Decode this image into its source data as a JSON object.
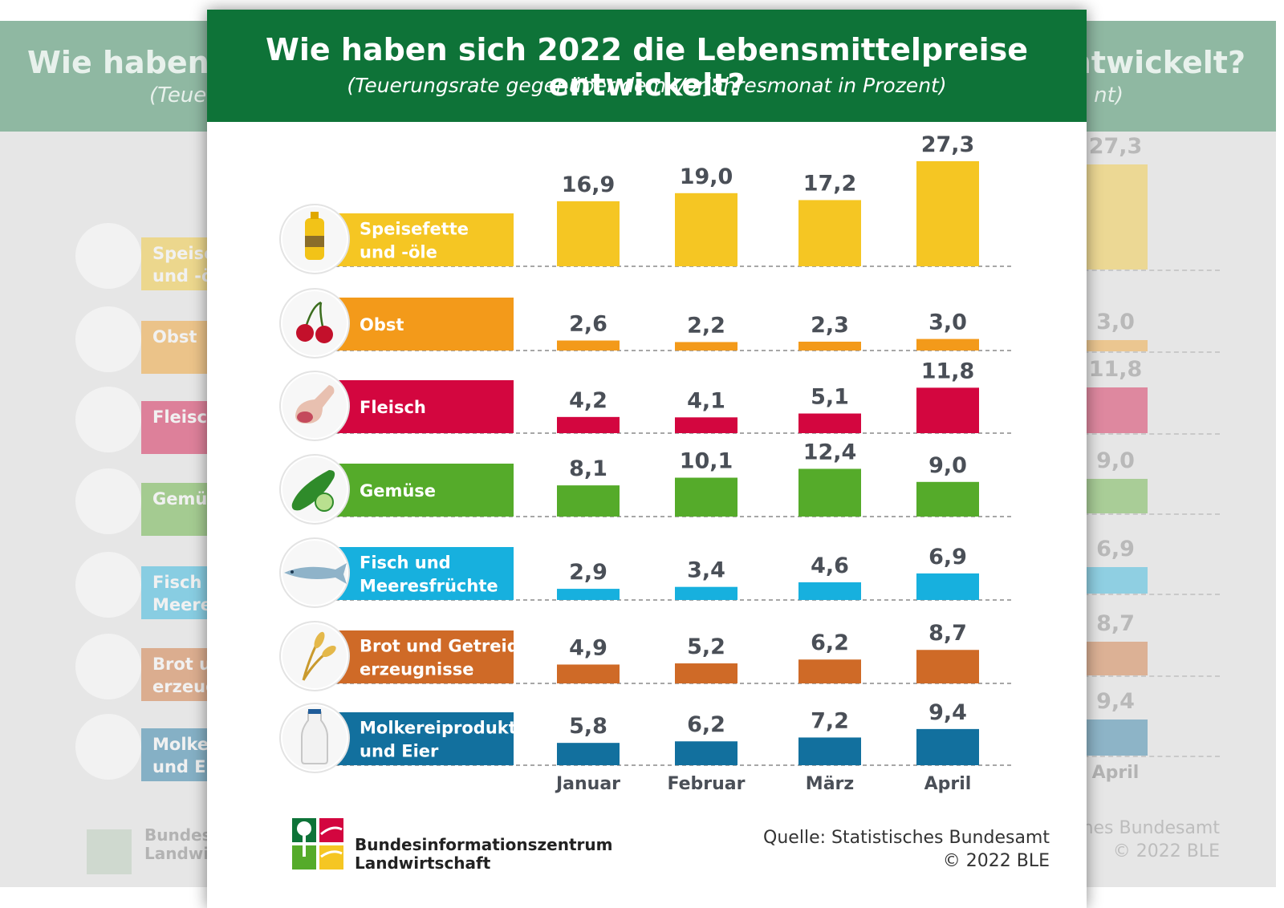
{
  "chart_data": {
    "type": "bar",
    "title": "Wie haben sich 2022 die Lebensmittelpreise entwickelt?",
    "subtitle": "(Teuerungsrate gegenüber dem Vorjahresmonat in Prozent)",
    "categories": [
      "Januar",
      "Februar",
      "März",
      "April"
    ],
    "series": [
      {
        "name": "Speisefette und -öle",
        "label_lines": [
          "Speisefette",
          "und -öle"
        ],
        "color": "#f5c623",
        "icon": "oil-bottle-icon",
        "values": [
          16.9,
          19.0,
          17.2,
          27.3
        ],
        "labels": [
          "16,9",
          "19,0",
          "17,2",
          "27,3"
        ]
      },
      {
        "name": "Obst",
        "label_lines": [
          "Obst"
        ],
        "color": "#f39a1a",
        "icon": "cherry-icon",
        "values": [
          2.6,
          2.2,
          2.3,
          3.0
        ],
        "labels": [
          "2,6",
          "2,2",
          "2,3",
          "3,0"
        ]
      },
      {
        "name": "Fleisch",
        "label_lines": [
          "Fleisch"
        ],
        "color": "#d3063f",
        "icon": "meat-icon",
        "values": [
          4.2,
          4.1,
          5.1,
          11.8
        ],
        "labels": [
          "4,2",
          "4,1",
          "5,1",
          "11,8"
        ]
      },
      {
        "name": "Gemüse",
        "label_lines": [
          "Gemüse"
        ],
        "color": "#55ab2a",
        "icon": "cucumber-icon",
        "values": [
          8.1,
          10.1,
          12.4,
          9.0
        ],
        "labels": [
          "8,1",
          "10,1",
          "12,4",
          "9,0"
        ]
      },
      {
        "name": "Fisch und Meeresfrüchte",
        "label_lines": [
          "Fisch und",
          "Meeresfrüchte"
        ],
        "color": "#17b0de",
        "icon": "fish-icon",
        "values": [
          2.9,
          3.4,
          4.6,
          6.9
        ],
        "labels": [
          "2,9",
          "3,4",
          "4,6",
          "6,9"
        ]
      },
      {
        "name": "Brot und Getreideerzeugnisse",
        "label_lines": [
          "Brot und Getreide-",
          "erzeugnisse"
        ],
        "color": "#cf6a27",
        "icon": "grain-icon",
        "values": [
          4.9,
          5.2,
          6.2,
          8.7
        ],
        "labels": [
          "4,9",
          "5,2",
          "6,2",
          "8,7"
        ]
      },
      {
        "name": "Molkereiprodukte und Eier",
        "label_lines": [
          "Molkereiprodukte",
          "und Eier"
        ],
        "color": "#12709e",
        "icon": "milk-bottle-icon",
        "values": [
          5.8,
          6.2,
          7.2,
          9.4
        ],
        "labels": [
          "5,8",
          "6,2",
          "7,2",
          "9,4"
        ]
      }
    ]
  },
  "source": {
    "line1": "Quelle: Statistisches Bundesamt",
    "line2": "© 2022 BLE"
  },
  "organization": {
    "line1": "Bundesinformationszentrum",
    "line2": "Landwirtschaft"
  },
  "ghost_left": {
    "title": "Wie haben si",
    "subtitle": "(Teuer",
    "labels": [
      [
        "Speise",
        "und -öl"
      ],
      [
        "Obst"
      ],
      [
        "Fleisch"
      ],
      [
        "Gemüs"
      ],
      [
        "Fisch u",
        "Meeres"
      ],
      [
        "Brot ur",
        "erzeug"
      ],
      [
        "Molker",
        "und Eie"
      ]
    ],
    "org": [
      "Bundesi",
      "Landwir"
    ]
  },
  "ghost_right": {
    "title": "ntwickelt?",
    "subtitle": "nt)",
    "values": [
      "27,3",
      "3,0",
      "11,8",
      "9,0",
      "6,9",
      "8,7",
      "9,4"
    ],
    "month": "April",
    "source": [
      "ches Bundesamt",
      "© 2022 BLE"
    ]
  }
}
